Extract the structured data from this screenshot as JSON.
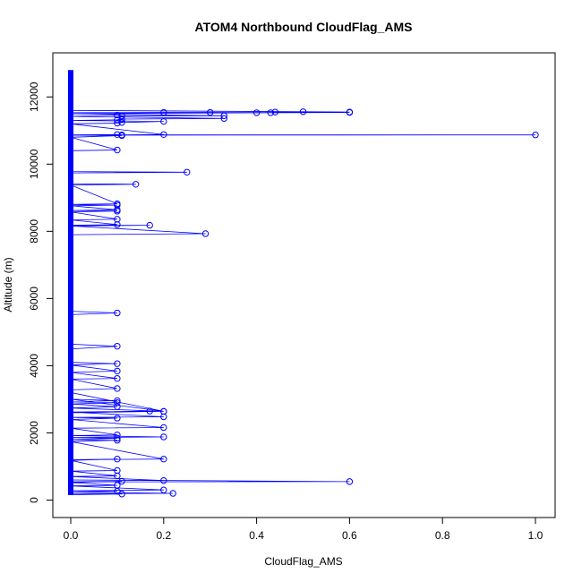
{
  "chart_data": {
    "type": "line",
    "title": "ATOM4 Northbound CloudFlag_AMS",
    "xlabel": "CloudFlag_AMS",
    "ylabel": "Altitude (m)",
    "xlim": [
      0,
      1.0
    ],
    "ylim": [
      0,
      12800
    ],
    "x_ticks": [
      0.0,
      0.2,
      0.4,
      0.6,
      0.8,
      1.0
    ],
    "x_tick_labels": [
      "0.0",
      "0.2",
      "0.4",
      "0.6",
      "0.8",
      "1.0"
    ],
    "y_ticks": [
      0,
      2000,
      4000,
      6000,
      8000,
      10000,
      12000
    ],
    "y_tick_labels": [
      "0",
      "2000",
      "4000",
      "6000",
      "8000",
      "10000",
      "12000"
    ],
    "grid": false,
    "legend": "none",
    "colors": {
      "series": "#0000ff",
      "axis": "#000000",
      "background": "#ffffff"
    },
    "series": [
      {
        "points": [
          {
            "x": 0,
            "y": 12800
          },
          {
            "x": 0,
            "y": 12400
          },
          {
            "x": 0,
            "y": 12000
          },
          {
            "x": 0,
            "y": 11600
          },
          {
            "x": 0.6,
            "y": 11550
          },
          {
            "x": 0.5,
            "y": 11560
          },
          {
            "x": 0.44,
            "y": 11550
          },
          {
            "x": 0.43,
            "y": 11530
          },
          {
            "x": 0.4,
            "y": 11530
          },
          {
            "x": 0.3,
            "y": 11540
          },
          {
            "x": 0.2,
            "y": 11540
          },
          {
            "x": 0,
            "y": 11530
          },
          {
            "x": 0.6,
            "y": 11540
          },
          {
            "x": 0,
            "y": 11500
          },
          {
            "x": 0.33,
            "y": 11440
          },
          {
            "x": 0.11,
            "y": 11440
          },
          {
            "x": 0.1,
            "y": 11460
          },
          {
            "x": 0,
            "y": 11420
          },
          {
            "x": 0.33,
            "y": 11360
          },
          {
            "x": 0.11,
            "y": 11340
          },
          {
            "x": 0.1,
            "y": 11320
          },
          {
            "x": 0,
            "y": 11300
          },
          {
            "x": 0.2,
            "y": 11270
          },
          {
            "x": 0.11,
            "y": 11240
          },
          {
            "x": 0.1,
            "y": 11220
          },
          {
            "x": 0,
            "y": 11200
          },
          {
            "x": 0.2,
            "y": 10880
          },
          {
            "x": 0.11,
            "y": 10870
          },
          {
            "x": 0.1,
            "y": 10880
          },
          {
            "x": 0,
            "y": 10870
          },
          {
            "x": 1.0,
            "y": 10870
          },
          {
            "x": 0,
            "y": 10860
          },
          {
            "x": 0.11,
            "y": 10850
          },
          {
            "x": 0,
            "y": 10800
          },
          {
            "x": 0.1,
            "y": 10420
          },
          {
            "x": 0,
            "y": 10400
          },
          {
            "x": 0,
            "y": 9780
          },
          {
            "x": 0.25,
            "y": 9760
          },
          {
            "x": 0,
            "y": 9740
          },
          {
            "x": 0,
            "y": 9420
          },
          {
            "x": 0.14,
            "y": 9400
          },
          {
            "x": 0,
            "y": 9380
          },
          {
            "x": 0.1,
            "y": 8820
          },
          {
            "x": 0,
            "y": 8800
          },
          {
            "x": 0.1,
            "y": 8780
          },
          {
            "x": 0,
            "y": 8760
          },
          {
            "x": 0.1,
            "y": 8640
          },
          {
            "x": 0,
            "y": 8620
          },
          {
            "x": 0.1,
            "y": 8600
          },
          {
            "x": 0,
            "y": 8580
          },
          {
            "x": 0.1,
            "y": 8360
          },
          {
            "x": 0,
            "y": 8340
          },
          {
            "x": 0.1,
            "y": 8200
          },
          {
            "x": 0,
            "y": 8180
          },
          {
            "x": 0.17,
            "y": 8180
          },
          {
            "x": 0,
            "y": 8160
          },
          {
            "x": 0.29,
            "y": 7930
          },
          {
            "x": 0,
            "y": 7900
          },
          {
            "x": 0,
            "y": 5620
          },
          {
            "x": 0.1,
            "y": 5570
          },
          {
            "x": 0,
            "y": 5520
          },
          {
            "x": 0,
            "y": 4640
          },
          {
            "x": 0.1,
            "y": 4580
          },
          {
            "x": 0,
            "y": 4500
          },
          {
            "x": 0,
            "y": 4100
          },
          {
            "x": 0.1,
            "y": 4060
          },
          {
            "x": 0,
            "y": 4020
          },
          {
            "x": 0.1,
            "y": 3840
          },
          {
            "x": 0,
            "y": 3800
          },
          {
            "x": 0.1,
            "y": 3620
          },
          {
            "x": 0,
            "y": 3600
          },
          {
            "x": 0.1,
            "y": 3320
          },
          {
            "x": 0,
            "y": 3280
          },
          {
            "x": 0,
            "y": 3200
          },
          {
            "x": 0.2,
            "y": 2640
          },
          {
            "x": 0,
            "y": 3000
          },
          {
            "x": 0.1,
            "y": 2960
          },
          {
            "x": 0,
            "y": 2920
          },
          {
            "x": 0.1,
            "y": 2900
          },
          {
            "x": 0,
            "y": 2860
          },
          {
            "x": 0.1,
            "y": 2780
          },
          {
            "x": 0,
            "y": 2740
          },
          {
            "x": 0.2,
            "y": 2640
          },
          {
            "x": 0,
            "y": 2600
          },
          {
            "x": 0.17,
            "y": 2650
          },
          {
            "x": 0,
            "y": 2620
          },
          {
            "x": 0.2,
            "y": 2480
          },
          {
            "x": 0,
            "y": 2460
          },
          {
            "x": 0.1,
            "y": 2440
          },
          {
            "x": 0,
            "y": 2400
          },
          {
            "x": 0.2,
            "y": 2160
          },
          {
            "x": 0,
            "y": 2140
          },
          {
            "x": 0.1,
            "y": 1940
          },
          {
            "x": 0,
            "y": 1920
          },
          {
            "x": 0.2,
            "y": 1880
          },
          {
            "x": 0,
            "y": 1860
          },
          {
            "x": 0.1,
            "y": 1840
          },
          {
            "x": 0,
            "y": 1800
          },
          {
            "x": 0.1,
            "y": 1780
          },
          {
            "x": 0,
            "y": 1740
          },
          {
            "x": 0.2,
            "y": 1220
          },
          {
            "x": 0,
            "y": 1200
          },
          {
            "x": 0.1,
            "y": 1220
          },
          {
            "x": 0,
            "y": 1180
          },
          {
            "x": 0.1,
            "y": 880
          },
          {
            "x": 0,
            "y": 860
          },
          {
            "x": 0.1,
            "y": 720
          },
          {
            "x": 0,
            "y": 700
          },
          {
            "x": 0.2,
            "y": 580
          },
          {
            "x": 0,
            "y": 600
          },
          {
            "x": 0.6,
            "y": 550
          },
          {
            "x": 0,
            "y": 540
          },
          {
            "x": 0.11,
            "y": 560
          },
          {
            "x": 0,
            "y": 520
          },
          {
            "x": 0.1,
            "y": 440
          },
          {
            "x": 0,
            "y": 420
          },
          {
            "x": 0.2,
            "y": 300
          },
          {
            "x": 0,
            "y": 280
          },
          {
            "x": 0.1,
            "y": 260
          },
          {
            "x": 0,
            "y": 240
          },
          {
            "x": 0.22,
            "y": 200
          },
          {
            "x": 0,
            "y": 190
          },
          {
            "x": 0.11,
            "y": 180
          },
          {
            "x": 0,
            "y": 160
          },
          {
            "x": 0,
            "y": 150
          }
        ]
      }
    ]
  }
}
